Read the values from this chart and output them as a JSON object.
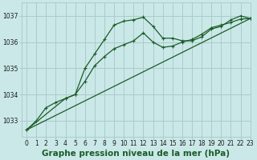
{
  "background_color": "#cbe8e8",
  "grid_color": "#aacccc",
  "line_color": "#1a5c28",
  "title": "Graphe pression niveau de la mer (hPa)",
  "xlim": [
    -0.5,
    23
  ],
  "ylim": [
    1032.4,
    1037.5
  ],
  "yticks": [
    1033,
    1034,
    1035,
    1036,
    1037
  ],
  "xticks": [
    0,
    1,
    2,
    3,
    4,
    5,
    6,
    7,
    8,
    9,
    10,
    11,
    12,
    13,
    14,
    15,
    16,
    17,
    18,
    19,
    20,
    21,
    22,
    23
  ],
  "series1_x": [
    0,
    1,
    2,
    3,
    4,
    5,
    6,
    7,
    8,
    9,
    10,
    11,
    12,
    13,
    14,
    15,
    16,
    17,
    18,
    19,
    20,
    21,
    22,
    23
  ],
  "series1_y": [
    1032.65,
    1033.0,
    1033.5,
    1033.7,
    1033.85,
    1034.0,
    1035.0,
    1035.55,
    1036.1,
    1036.65,
    1036.8,
    1036.85,
    1036.95,
    1036.6,
    1036.15,
    1036.15,
    1036.05,
    1036.05,
    1036.2,
    1036.5,
    1036.6,
    1036.85,
    1037.0,
    1036.9
  ],
  "series2_x": [
    0,
    4,
    5,
    6,
    7,
    8,
    9,
    10,
    11,
    12,
    13,
    14,
    15,
    16,
    17,
    18,
    19,
    20,
    21,
    22,
    23
  ],
  "series2_y": [
    1032.65,
    1033.85,
    1034.0,
    1034.5,
    1035.1,
    1035.45,
    1035.75,
    1035.9,
    1036.05,
    1036.35,
    1036.0,
    1035.8,
    1035.85,
    1036.0,
    1036.1,
    1036.3,
    1036.55,
    1036.65,
    1036.75,
    1036.88,
    1036.9
  ],
  "series3_x": [
    0,
    23
  ],
  "series3_y": [
    1032.65,
    1036.9
  ],
  "title_fontsize": 7.5,
  "tick_fontsize": 5.5
}
